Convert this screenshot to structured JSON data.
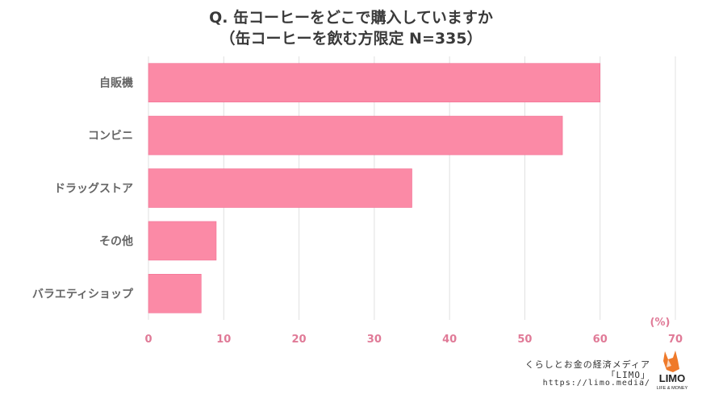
{
  "title_line1": "Q. 缶コーヒーをどこで購入していますか",
  "title_line2": "（缶コーヒーを飲む方限定 N=335）",
  "unit_label": "(%)",
  "credit": {
    "line1": "くらしとお金の経済メディア",
    "line2": "「LIMO」",
    "line3": "https://limo.media/"
  },
  "logo": {
    "wordmark": "LIMO",
    "tagline": "LIFE & MONEY"
  },
  "colors": {
    "bar": "#fb8aa6",
    "bar_edge": "#f26e92",
    "axis_text": "#e07a97",
    "category_text": "#666666",
    "grid": "#e0e0e0",
    "logo_orange": "#ef7a2a"
  },
  "chart_data": {
    "type": "bar",
    "orientation": "horizontal",
    "categories": [
      "自販機",
      "コンビニ",
      "ドラッグストア",
      "その他",
      "バラエティショップ"
    ],
    "values": [
      60,
      55,
      35,
      9,
      7
    ],
    "xlim": [
      0,
      70
    ],
    "xticks": [
      0,
      10,
      20,
      30,
      40,
      50,
      60,
      70
    ],
    "grid": true
  }
}
